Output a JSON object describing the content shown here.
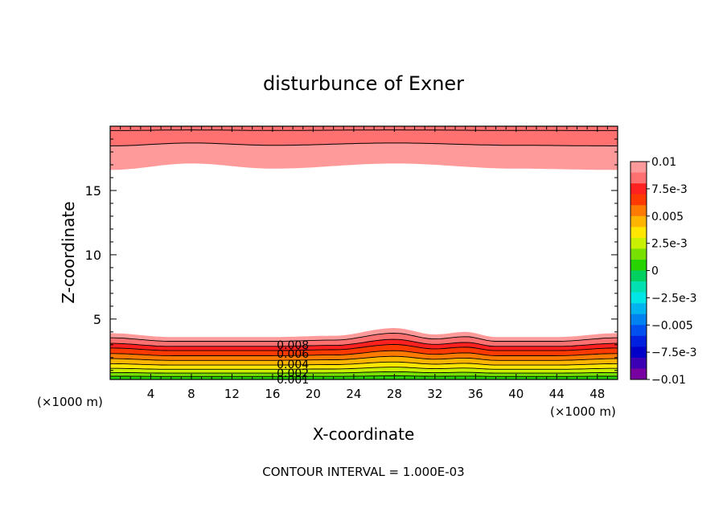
{
  "chart_data": {
    "type": "contour",
    "title": "disturbunce of Exner",
    "xlabel": "X-coordinate",
    "ylabel": "Z-coordinate",
    "x_unit_label_left": "(×1000 m)",
    "x_unit_label_right": "(×1000 m)",
    "xlim": [
      0,
      50
    ],
    "ylim": [
      0.3,
      20
    ],
    "x_ticks": [
      4,
      8,
      12,
      16,
      20,
      24,
      28,
      32,
      36,
      40,
      44,
      48
    ],
    "x_tick_labels": [
      "4",
      "8",
      "12",
      "16",
      "20",
      "24",
      "28",
      "32",
      "36",
      "40",
      "44",
      "48"
    ],
    "y_ticks": [
      5,
      10,
      15
    ],
    "y_tick_labels": [
      "5",
      "10",
      "15"
    ],
    "footer": "CONTOUR INTERVAL = 1.000E-03",
    "contour_interval": 0.001,
    "contour_labels": [
      {
        "text": "0.008",
        "x": 18,
        "z": 3.0
      },
      {
        "text": "0.006",
        "x": 18,
        "z": 2.3
      },
      {
        "text": "0.004",
        "x": 18,
        "z": 1.5
      },
      {
        "text": "0.002",
        "x": 18,
        "z": 0.8
      },
      {
        "text": "0.001",
        "x": 18,
        "z": 0.3
      }
    ],
    "colorbar": {
      "range": [
        -0.01,
        0.01
      ],
      "tick_labels": [
        "0.01",
        "7.5e-3",
        "0.005",
        "2.5e-3",
        "0",
        "−2.5e-3",
        "−0.005",
        "−7.5e-3",
        "−0.01"
      ],
      "bands": [
        {
          "value": 0.0095,
          "color": "#ff9a9a"
        },
        {
          "value": 0.0085,
          "color": "#ff7070"
        },
        {
          "value": 0.0075,
          "color": "#ff2020"
        },
        {
          "value": 0.0065,
          "color": "#ff3a00"
        },
        {
          "value": 0.0055,
          "color": "#ff7a00"
        },
        {
          "value": 0.0045,
          "color": "#ffb400"
        },
        {
          "value": 0.0035,
          "color": "#ffe600"
        },
        {
          "value": 0.0025,
          "color": "#c8f000"
        },
        {
          "value": 0.0015,
          "color": "#78e000"
        },
        {
          "value": 0.0005,
          "color": "#28d400"
        },
        {
          "value": -0.0005,
          "color": "#00d060"
        },
        {
          "value": -0.0015,
          "color": "#00e0b0"
        },
        {
          "value": -0.0025,
          "color": "#00e6e6"
        },
        {
          "value": -0.0035,
          "color": "#00b4f0"
        },
        {
          "value": -0.0045,
          "color": "#0082f0"
        },
        {
          "value": -0.0055,
          "color": "#0050f0"
        },
        {
          "value": -0.0065,
          "color": "#0020e0"
        },
        {
          "value": -0.0075,
          "color": "#0000c8"
        },
        {
          "value": -0.0085,
          "color": "#3c00b4"
        },
        {
          "value": -0.0095,
          "color": "#7800a0"
        }
      ]
    },
    "field_description": {
      "top_region": {
        "from_z": 20,
        "values_top_to_bottom": [
          0.0085,
          0.0095
        ],
        "bottom_edge_z_by_x": [
          [
            0,
            16.6
          ],
          [
            8,
            17.1
          ],
          [
            16,
            16.7
          ],
          [
            28,
            17.1
          ],
          [
            40,
            16.7
          ],
          [
            50,
            16.6
          ]
        ]
      },
      "bottom_region": {
        "layers_top_to_bottom": [
          0.0095,
          0.0085,
          0.0075,
          0.0065,
          0.0055,
          0.0045,
          0.0035,
          0.0025,
          0.0015,
          0.0005
        ],
        "top_edge_z_by_x": [
          [
            0,
            3.9
          ],
          [
            6,
            3.6
          ],
          [
            16,
            3.6
          ],
          [
            22,
            3.7
          ],
          [
            28,
            4.3
          ],
          [
            32,
            3.8
          ],
          [
            35,
            4.0
          ],
          [
            38,
            3.6
          ],
          [
            44,
            3.6
          ],
          [
            50,
            3.9
          ]
        ]
      }
    }
  }
}
